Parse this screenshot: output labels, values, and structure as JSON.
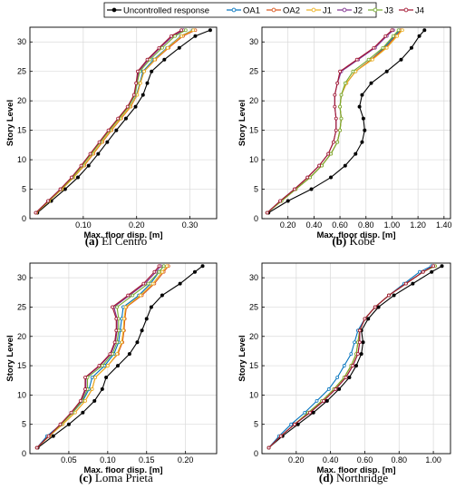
{
  "legend": [
    {
      "name": "Uncontrolled response",
      "color": "#000000"
    },
    {
      "name": "OA1",
      "color": "#0072BD"
    },
    {
      "name": "OA2",
      "color": "#D95319"
    },
    {
      "name": "J1",
      "color": "#EDB120"
    },
    {
      "name": "J2",
      "color": "#7E2F8E"
    },
    {
      "name": "J3",
      "color": "#77AC30"
    },
    {
      "name": "J4",
      "color": "#A2142F"
    }
  ],
  "chart_data": [
    {
      "type": "line",
      "caption_letter": "(a)",
      "caption_text": "El Centro",
      "xlabel": "Max. floor disp. [m]",
      "ylabel": "Story Level",
      "xlim": [
        0.0,
        0.35
      ],
      "ylim": [
        0,
        32.5
      ],
      "xticks": [
        0.1,
        0.2,
        0.3
      ],
      "xtick_labels": [
        "0.10",
        "0.20",
        "0.30"
      ],
      "yticks": [
        0,
        5,
        10,
        15,
        20,
        25,
        30
      ],
      "grid": true,
      "y": [
        1,
        3,
        5,
        7,
        9,
        11,
        13,
        15,
        17,
        19,
        21,
        23,
        25,
        27,
        29,
        31,
        32
      ],
      "series": [
        {
          "name": "Uncontrolled response",
          "x": [
            0.014,
            0.04,
            0.066,
            0.09,
            0.11,
            0.128,
            0.145,
            0.162,
            0.18,
            0.198,
            0.212,
            0.22,
            0.228,
            0.252,
            0.28,
            0.31,
            0.338
          ]
        },
        {
          "name": "OA1",
          "x": [
            0.012,
            0.036,
            0.06,
            0.082,
            0.101,
            0.118,
            0.135,
            0.152,
            0.17,
            0.188,
            0.2,
            0.206,
            0.212,
            0.232,
            0.257,
            0.283,
            0.305
          ]
        },
        {
          "name": "OA2",
          "x": [
            0.012,
            0.036,
            0.06,
            0.082,
            0.102,
            0.119,
            0.136,
            0.153,
            0.171,
            0.189,
            0.201,
            0.207,
            0.214,
            0.235,
            0.26,
            0.287,
            0.31
          ]
        },
        {
          "name": "J1",
          "x": [
            0.012,
            0.036,
            0.06,
            0.082,
            0.101,
            0.118,
            0.135,
            0.152,
            0.17,
            0.188,
            0.201,
            0.207,
            0.214,
            0.234,
            0.258,
            0.284,
            0.306
          ]
        },
        {
          "name": "J2",
          "x": [
            0.011,
            0.034,
            0.057,
            0.079,
            0.097,
            0.114,
            0.131,
            0.148,
            0.166,
            0.184,
            0.196,
            0.2,
            0.204,
            0.222,
            0.244,
            0.268,
            0.288
          ]
        },
        {
          "name": "J3",
          "x": [
            0.011,
            0.035,
            0.058,
            0.08,
            0.098,
            0.115,
            0.132,
            0.149,
            0.167,
            0.185,
            0.197,
            0.201,
            0.206,
            0.225,
            0.248,
            0.272,
            0.292
          ]
        },
        {
          "name": "J4",
          "x": [
            0.011,
            0.034,
            0.057,
            0.078,
            0.096,
            0.113,
            0.13,
            0.147,
            0.165,
            0.183,
            0.195,
            0.199,
            0.202,
            0.22,
            0.242,
            0.265,
            0.284
          ]
        }
      ]
    },
    {
      "type": "line",
      "caption_letter": "(b)",
      "caption_text": "Kobe",
      "xlabel": "Max. floor disp. [m]",
      "ylabel": "Story Level",
      "xlim": [
        0.0,
        1.45
      ],
      "ylim": [
        0,
        32.5
      ],
      "xticks": [
        0.2,
        0.4,
        0.6,
        0.8,
        1.0,
        1.2,
        1.4
      ],
      "xtick_labels": [
        "0.20",
        "0.40",
        "0.60",
        "0.80",
        "1.00",
        "1.20",
        "1.40"
      ],
      "yticks": [
        0,
        5,
        10,
        15,
        20,
        25,
        30
      ],
      "grid": true,
      "y": [
        1,
        3,
        5,
        7,
        9,
        11,
        13,
        15,
        17,
        19,
        21,
        23,
        25,
        27,
        29,
        31,
        32
      ],
      "series": [
        {
          "name": "Uncontrolled response",
          "x": [
            0.05,
            0.2,
            0.38,
            0.53,
            0.64,
            0.72,
            0.77,
            0.79,
            0.78,
            0.75,
            0.77,
            0.84,
            0.96,
            1.07,
            1.15,
            1.21,
            1.25
          ]
        },
        {
          "name": "OA1",
          "x": [
            0.04,
            0.15,
            0.26,
            0.37,
            0.46,
            0.53,
            0.58,
            0.6,
            0.61,
            0.6,
            0.61,
            0.65,
            0.72,
            0.84,
            0.94,
            1.02,
            1.06
          ]
        },
        {
          "name": "OA2",
          "x": [
            0.04,
            0.15,
            0.26,
            0.37,
            0.46,
            0.53,
            0.58,
            0.6,
            0.61,
            0.6,
            0.61,
            0.65,
            0.72,
            0.84,
            0.95,
            1.03,
            1.07
          ]
        },
        {
          "name": "J1",
          "x": [
            0.04,
            0.15,
            0.26,
            0.37,
            0.46,
            0.53,
            0.58,
            0.6,
            0.61,
            0.6,
            0.61,
            0.65,
            0.72,
            0.85,
            0.96,
            1.04,
            1.08
          ]
        },
        {
          "name": "J2",
          "x": [
            0.04,
            0.14,
            0.25,
            0.35,
            0.44,
            0.51,
            0.55,
            0.57,
            0.57,
            0.56,
            0.56,
            0.58,
            0.61,
            0.74,
            0.87,
            0.96,
            1.01
          ]
        },
        {
          "name": "J3",
          "x": [
            0.04,
            0.15,
            0.26,
            0.37,
            0.46,
            0.53,
            0.58,
            0.6,
            0.61,
            0.6,
            0.61,
            0.64,
            0.7,
            0.82,
            0.93,
            1.01,
            1.05
          ]
        },
        {
          "name": "J4",
          "x": [
            0.04,
            0.14,
            0.25,
            0.35,
            0.44,
            0.51,
            0.55,
            0.57,
            0.57,
            0.56,
            0.56,
            0.58,
            0.6,
            0.73,
            0.86,
            0.95,
            1.0
          ]
        }
      ]
    },
    {
      "type": "line",
      "caption_letter": "(c)",
      "caption_text": "Loma Prieta",
      "xlabel": "Max. floor disp. [m]",
      "ylabel": "Story Level",
      "xlim": [
        0.0,
        0.24
      ],
      "ylim": [
        0,
        32.5
      ],
      "xticks": [
        0.05,
        0.1,
        0.15,
        0.2
      ],
      "xtick_labels": [
        "0.05",
        "0.10",
        "0.15",
        "0.20"
      ],
      "yticks": [
        0,
        5,
        10,
        15,
        20,
        25,
        30
      ],
      "grid": true,
      "y": [
        1,
        3,
        5,
        7,
        9,
        11,
        13,
        15,
        17,
        19,
        21,
        23,
        25,
        27,
        29,
        31,
        32
      ],
      "series": [
        {
          "name": "Uncontrolled response",
          "x": [
            0.01,
            0.03,
            0.05,
            0.068,
            0.083,
            0.093,
            0.098,
            0.113,
            0.128,
            0.138,
            0.144,
            0.15,
            0.156,
            0.17,
            0.193,
            0.212,
            0.222
          ]
        },
        {
          "name": "OA1",
          "x": [
            0.009,
            0.022,
            0.04,
            0.055,
            0.068,
            0.076,
            0.08,
            0.096,
            0.108,
            0.114,
            0.116,
            0.118,
            0.12,
            0.14,
            0.155,
            0.166,
            0.172
          ]
        },
        {
          "name": "OA2",
          "x": [
            0.009,
            0.025,
            0.042,
            0.058,
            0.071,
            0.08,
            0.084,
            0.1,
            0.113,
            0.119,
            0.121,
            0.122,
            0.124,
            0.144,
            0.16,
            0.172,
            0.178
          ]
        },
        {
          "name": "J1",
          "x": [
            0.009,
            0.025,
            0.042,
            0.058,
            0.071,
            0.08,
            0.084,
            0.1,
            0.112,
            0.118,
            0.12,
            0.121,
            0.123,
            0.142,
            0.158,
            0.17,
            0.176
          ]
        },
        {
          "name": "J2",
          "x": [
            0.009,
            0.024,
            0.04,
            0.054,
            0.066,
            0.072,
            0.072,
            0.09,
            0.104,
            0.11,
            0.112,
            0.112,
            0.108,
            0.128,
            0.148,
            0.162,
            0.168
          ]
        },
        {
          "name": "J3",
          "x": [
            0.009,
            0.024,
            0.04,
            0.055,
            0.067,
            0.074,
            0.074,
            0.093,
            0.106,
            0.112,
            0.114,
            0.114,
            0.112,
            0.132,
            0.152,
            0.166,
            0.172
          ]
        },
        {
          "name": "J4",
          "x": [
            0.009,
            0.024,
            0.039,
            0.053,
            0.065,
            0.071,
            0.071,
            0.089,
            0.103,
            0.109,
            0.111,
            0.111,
            0.106,
            0.126,
            0.146,
            0.16,
            0.166
          ]
        }
      ]
    },
    {
      "type": "line",
      "caption_letter": "(d)",
      "caption_text": "Northridge",
      "xlabel": "Max. floor disp. [m]",
      "ylabel": "Story Level",
      "xlim": [
        0.0,
        1.1
      ],
      "ylim": [
        0,
        32.5
      ],
      "xticks": [
        0.2,
        0.4,
        0.6,
        0.8,
        1.0
      ],
      "xtick_labels": [
        "0.20",
        "0.40",
        "0.60",
        "0.80",
        "1.00"
      ],
      "yticks": [
        0,
        5,
        10,
        15,
        20,
        25,
        30
      ],
      "grid": true,
      "y": [
        1,
        3,
        5,
        7,
        9,
        11,
        13,
        15,
        17,
        19,
        21,
        23,
        25,
        27,
        29,
        31,
        32
      ],
      "series": [
        {
          "name": "Uncontrolled response",
          "x": [
            0.04,
            0.12,
            0.21,
            0.3,
            0.38,
            0.45,
            0.51,
            0.55,
            0.58,
            0.59,
            0.58,
            0.62,
            0.68,
            0.77,
            0.88,
            0.99,
            1.05
          ]
        },
        {
          "name": "OA1",
          "x": [
            0.04,
            0.1,
            0.17,
            0.25,
            0.32,
            0.39,
            0.44,
            0.48,
            0.52,
            0.54,
            0.56,
            0.6,
            0.66,
            0.74,
            0.83,
            0.92,
            0.99
          ]
        },
        {
          "name": "OA2",
          "x": [
            0.04,
            0.11,
            0.19,
            0.27,
            0.35,
            0.42,
            0.48,
            0.52,
            0.55,
            0.56,
            0.57,
            0.6,
            0.66,
            0.74,
            0.84,
            0.94,
            1.01
          ]
        },
        {
          "name": "J1",
          "x": [
            0.04,
            0.11,
            0.19,
            0.27,
            0.35,
            0.42,
            0.48,
            0.52,
            0.55,
            0.56,
            0.57,
            0.6,
            0.66,
            0.74,
            0.84,
            0.94,
            1.01
          ]
        },
        {
          "name": "J2",
          "x": [
            0.04,
            0.11,
            0.19,
            0.28,
            0.36,
            0.43,
            0.49,
            0.53,
            0.56,
            0.57,
            0.57,
            0.6,
            0.66,
            0.74,
            0.84,
            0.94,
            1.0
          ]
        },
        {
          "name": "J3",
          "x": [
            0.04,
            0.11,
            0.19,
            0.27,
            0.35,
            0.42,
            0.48,
            0.52,
            0.55,
            0.56,
            0.57,
            0.6,
            0.66,
            0.74,
            0.84,
            0.94,
            1.01
          ]
        },
        {
          "name": "J4",
          "x": [
            0.04,
            0.11,
            0.19,
            0.28,
            0.36,
            0.43,
            0.49,
            0.53,
            0.56,
            0.57,
            0.57,
            0.6,
            0.66,
            0.74,
            0.84,
            0.94,
            1.0
          ]
        }
      ]
    }
  ]
}
